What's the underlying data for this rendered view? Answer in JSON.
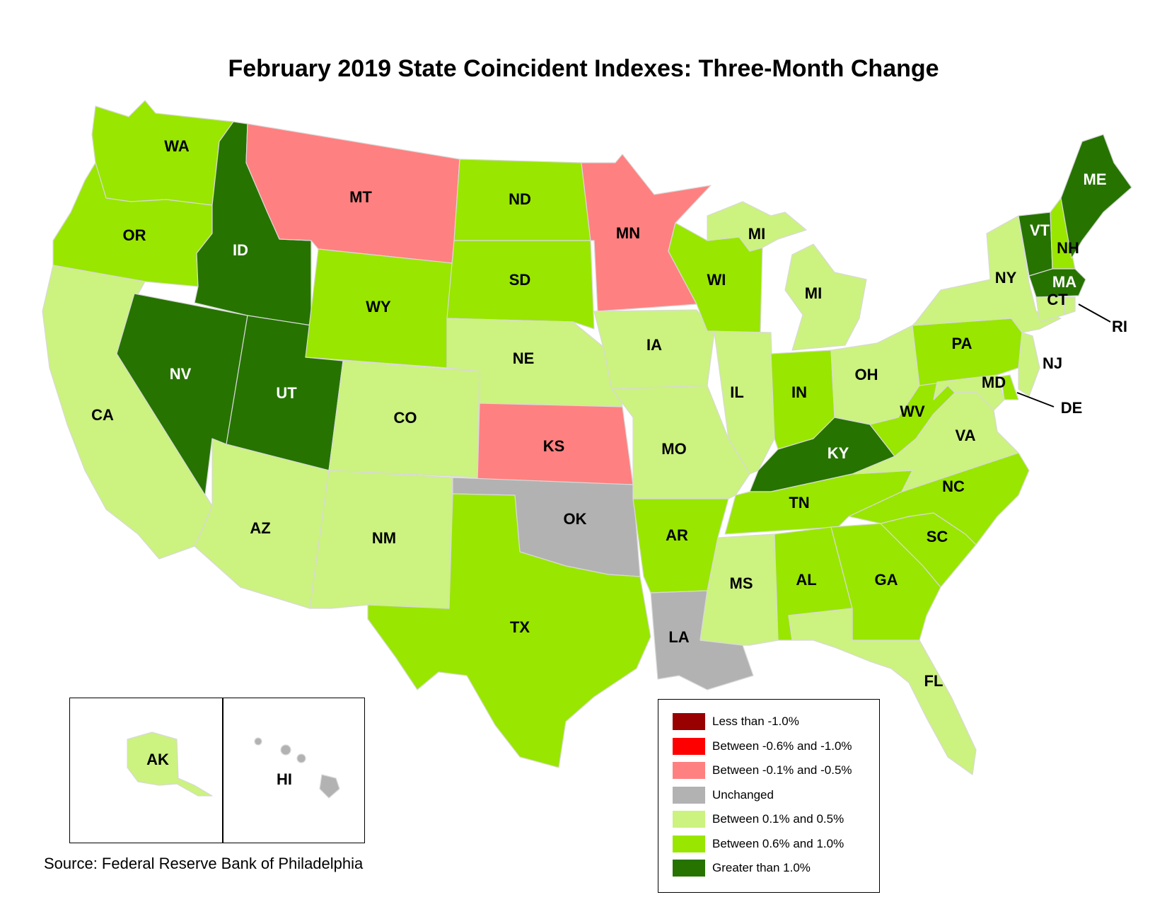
{
  "title": "February 2019 State Coincident Indexes: Three-Month Change",
  "source": "Source: Federal Reserve Bank of Philadelphia",
  "colors": {
    "lt_neg_1_0": "#990000",
    "neg_0_6_to_1_0": "#ff0000",
    "neg_0_1_to_0_5": "#ff8080",
    "unchanged": "#b2b2b2",
    "pos_0_1_to_0_5": "#ccf280",
    "pos_0_6_to_1_0": "#99e600",
    "gt_1_0": "#267300"
  },
  "legend": [
    {
      "label": "Less than -1.0%",
      "color": "#990000"
    },
    {
      "label": "Between -0.6% and -1.0%",
      "color": "#ff0000"
    },
    {
      "label": "Between -0.1% and -0.5%",
      "color": "#ff8080"
    },
    {
      "label": "Unchanged",
      "color": "#b2b2b2"
    },
    {
      "label": "Between 0.1% and 0.5%",
      "color": "#ccf280"
    },
    {
      "label": "Between 0.6% and 1.0%",
      "color": "#99e600"
    },
    {
      "label": "Greater than 1.0%",
      "color": "#267300"
    }
  ],
  "states": {
    "WA": {
      "label": "WA",
      "category": "Between 0.6% and 1.0%"
    },
    "OR": {
      "label": "OR",
      "category": "Between 0.6% and 1.0%"
    },
    "CA": {
      "label": "CA",
      "category": "Between 0.1% and 0.5%"
    },
    "ID": {
      "label": "ID",
      "category": "Greater than 1.0%"
    },
    "NV": {
      "label": "NV",
      "category": "Greater than 1.0%"
    },
    "UT": {
      "label": "UT",
      "category": "Greater than 1.0%"
    },
    "AZ": {
      "label": "AZ",
      "category": "Between 0.1% and 0.5%"
    },
    "MT": {
      "label": "MT",
      "category": "Between -0.1% and -0.5%"
    },
    "WY": {
      "label": "WY",
      "category": "Between 0.6% and 1.0%"
    },
    "CO": {
      "label": "CO",
      "category": "Between 0.1% and 0.5%"
    },
    "NM": {
      "label": "NM",
      "category": "Between 0.1% and 0.5%"
    },
    "ND": {
      "label": "ND",
      "category": "Between 0.6% and 1.0%"
    },
    "SD": {
      "label": "SD",
      "category": "Between 0.6% and 1.0%"
    },
    "NE": {
      "label": "NE",
      "category": "Between 0.1% and 0.5%"
    },
    "KS": {
      "label": "KS",
      "category": "Between -0.1% and -0.5%"
    },
    "OK": {
      "label": "OK",
      "category": "Unchanged"
    },
    "TX": {
      "label": "TX",
      "category": "Between 0.6% and 1.0%"
    },
    "MN": {
      "label": "MN",
      "category": "Between -0.1% and -0.5%"
    },
    "IA": {
      "label": "IA",
      "category": "Between 0.1% and 0.5%"
    },
    "MO": {
      "label": "MO",
      "category": "Between 0.1% and 0.5%"
    },
    "AR": {
      "label": "AR",
      "category": "Between 0.6% and 1.0%"
    },
    "LA": {
      "label": "LA",
      "category": "Unchanged"
    },
    "WI": {
      "label": "WI",
      "category": "Between 0.6% and 1.0%"
    },
    "IL": {
      "label": "IL",
      "category": "Between 0.1% and 0.5%"
    },
    "MI": {
      "label": "MI",
      "category": "Between 0.1% and 0.5%"
    },
    "MI_UP": {
      "label": "MI",
      "category": "Between 0.1% and 0.5%"
    },
    "IN": {
      "label": "IN",
      "category": "Between 0.6% and 1.0%"
    },
    "OH": {
      "label": "OH",
      "category": "Between 0.1% and 0.5%"
    },
    "KY": {
      "label": "KY",
      "category": "Greater than 1.0%"
    },
    "TN": {
      "label": "TN",
      "category": "Between 0.6% and 1.0%"
    },
    "MS": {
      "label": "MS",
      "category": "Between 0.1% and 0.5%"
    },
    "AL": {
      "label": "AL",
      "category": "Between 0.6% and 1.0%"
    },
    "GA": {
      "label": "GA",
      "category": "Between 0.6% and 1.0%"
    },
    "FL": {
      "label": "FL",
      "category": "Between 0.1% and 0.5%"
    },
    "SC": {
      "label": "SC",
      "category": "Between 0.6% and 1.0%"
    },
    "NC": {
      "label": "NC",
      "category": "Between 0.6% and 1.0%"
    },
    "VA": {
      "label": "VA",
      "category": "Between 0.1% and 0.5%"
    },
    "WV": {
      "label": "WV",
      "category": "Between 0.6% and 1.0%"
    },
    "PA": {
      "label": "PA",
      "category": "Between 0.6% and 1.0%"
    },
    "NY": {
      "label": "NY",
      "category": "Between 0.1% and 0.5%"
    },
    "VT": {
      "label": "VT",
      "category": "Greater than 1.0%"
    },
    "NH": {
      "label": "NH",
      "category": "Between 0.6% and 1.0%"
    },
    "ME": {
      "label": "ME",
      "category": "Greater than 1.0%"
    },
    "MA": {
      "label": "MA",
      "category": "Greater than 1.0%"
    },
    "CT": {
      "label": "CT",
      "category": "Between 0.1% and 0.5%"
    },
    "RI": {
      "label": "RI",
      "category": "Between 0.1% and 0.5%"
    },
    "NJ": {
      "label": "NJ",
      "category": "Between 0.1% and 0.5%"
    },
    "DE": {
      "label": "DE",
      "category": "Between 0.6% and 1.0%"
    },
    "MD": {
      "label": "MD",
      "category": "Between 0.1% and 0.5%"
    },
    "AK": {
      "label": "AK",
      "category": "Between 0.1% and 0.5%"
    },
    "HI": {
      "label": "HI",
      "category": "Unchanged"
    }
  }
}
